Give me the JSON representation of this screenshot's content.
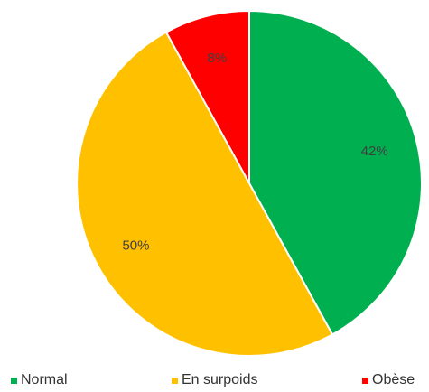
{
  "chart_data": {
    "type": "pie",
    "title": "",
    "categories": [
      "Normal",
      "En surpoids",
      "Obèse"
    ],
    "values": [
      42,
      50,
      8
    ],
    "data_labels": [
      "42%",
      "50%",
      "8%"
    ],
    "colors": [
      "#00b050",
      "#ffc000",
      "#ff0000"
    ],
    "legend_position": "bottom"
  }
}
